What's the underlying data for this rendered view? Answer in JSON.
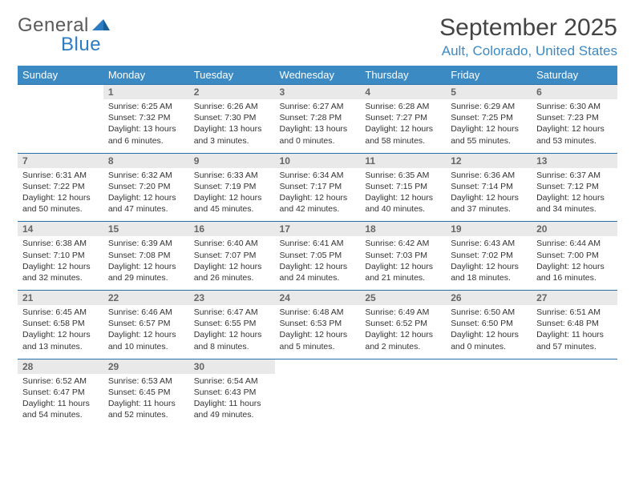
{
  "logo": {
    "text1": "General",
    "text2": "Blue"
  },
  "title": "September 2025",
  "location": "Ault, Colorado, United States",
  "weekdays": [
    "Sunday",
    "Monday",
    "Tuesday",
    "Wednesday",
    "Thursday",
    "Friday",
    "Saturday"
  ],
  "colors": {
    "header_bg": "#3b8ac4",
    "header_text": "#ffffff",
    "daynum_bg": "#e9e9e9",
    "border": "#2a6fa5",
    "location": "#3b8ac4",
    "logo_gray": "#5a5a5a",
    "logo_blue": "#2d7cc1"
  },
  "weeks": [
    [
      null,
      {
        "n": "1",
        "sr": "Sunrise: 6:25 AM",
        "ss": "Sunset: 7:32 PM",
        "dl": "Daylight: 13 hours and 6 minutes."
      },
      {
        "n": "2",
        "sr": "Sunrise: 6:26 AM",
        "ss": "Sunset: 7:30 PM",
        "dl": "Daylight: 13 hours and 3 minutes."
      },
      {
        "n": "3",
        "sr": "Sunrise: 6:27 AM",
        "ss": "Sunset: 7:28 PM",
        "dl": "Daylight: 13 hours and 0 minutes."
      },
      {
        "n": "4",
        "sr": "Sunrise: 6:28 AM",
        "ss": "Sunset: 7:27 PM",
        "dl": "Daylight: 12 hours and 58 minutes."
      },
      {
        "n": "5",
        "sr": "Sunrise: 6:29 AM",
        "ss": "Sunset: 7:25 PM",
        "dl": "Daylight: 12 hours and 55 minutes."
      },
      {
        "n": "6",
        "sr": "Sunrise: 6:30 AM",
        "ss": "Sunset: 7:23 PM",
        "dl": "Daylight: 12 hours and 53 minutes."
      }
    ],
    [
      {
        "n": "7",
        "sr": "Sunrise: 6:31 AM",
        "ss": "Sunset: 7:22 PM",
        "dl": "Daylight: 12 hours and 50 minutes."
      },
      {
        "n": "8",
        "sr": "Sunrise: 6:32 AM",
        "ss": "Sunset: 7:20 PM",
        "dl": "Daylight: 12 hours and 47 minutes."
      },
      {
        "n": "9",
        "sr": "Sunrise: 6:33 AM",
        "ss": "Sunset: 7:19 PM",
        "dl": "Daylight: 12 hours and 45 minutes."
      },
      {
        "n": "10",
        "sr": "Sunrise: 6:34 AM",
        "ss": "Sunset: 7:17 PM",
        "dl": "Daylight: 12 hours and 42 minutes."
      },
      {
        "n": "11",
        "sr": "Sunrise: 6:35 AM",
        "ss": "Sunset: 7:15 PM",
        "dl": "Daylight: 12 hours and 40 minutes."
      },
      {
        "n": "12",
        "sr": "Sunrise: 6:36 AM",
        "ss": "Sunset: 7:14 PM",
        "dl": "Daylight: 12 hours and 37 minutes."
      },
      {
        "n": "13",
        "sr": "Sunrise: 6:37 AM",
        "ss": "Sunset: 7:12 PM",
        "dl": "Daylight: 12 hours and 34 minutes."
      }
    ],
    [
      {
        "n": "14",
        "sr": "Sunrise: 6:38 AM",
        "ss": "Sunset: 7:10 PM",
        "dl": "Daylight: 12 hours and 32 minutes."
      },
      {
        "n": "15",
        "sr": "Sunrise: 6:39 AM",
        "ss": "Sunset: 7:08 PM",
        "dl": "Daylight: 12 hours and 29 minutes."
      },
      {
        "n": "16",
        "sr": "Sunrise: 6:40 AM",
        "ss": "Sunset: 7:07 PM",
        "dl": "Daylight: 12 hours and 26 minutes."
      },
      {
        "n": "17",
        "sr": "Sunrise: 6:41 AM",
        "ss": "Sunset: 7:05 PM",
        "dl": "Daylight: 12 hours and 24 minutes."
      },
      {
        "n": "18",
        "sr": "Sunrise: 6:42 AM",
        "ss": "Sunset: 7:03 PM",
        "dl": "Daylight: 12 hours and 21 minutes."
      },
      {
        "n": "19",
        "sr": "Sunrise: 6:43 AM",
        "ss": "Sunset: 7:02 PM",
        "dl": "Daylight: 12 hours and 18 minutes."
      },
      {
        "n": "20",
        "sr": "Sunrise: 6:44 AM",
        "ss": "Sunset: 7:00 PM",
        "dl": "Daylight: 12 hours and 16 minutes."
      }
    ],
    [
      {
        "n": "21",
        "sr": "Sunrise: 6:45 AM",
        "ss": "Sunset: 6:58 PM",
        "dl": "Daylight: 12 hours and 13 minutes."
      },
      {
        "n": "22",
        "sr": "Sunrise: 6:46 AM",
        "ss": "Sunset: 6:57 PM",
        "dl": "Daylight: 12 hours and 10 minutes."
      },
      {
        "n": "23",
        "sr": "Sunrise: 6:47 AM",
        "ss": "Sunset: 6:55 PM",
        "dl": "Daylight: 12 hours and 8 minutes."
      },
      {
        "n": "24",
        "sr": "Sunrise: 6:48 AM",
        "ss": "Sunset: 6:53 PM",
        "dl": "Daylight: 12 hours and 5 minutes."
      },
      {
        "n": "25",
        "sr": "Sunrise: 6:49 AM",
        "ss": "Sunset: 6:52 PM",
        "dl": "Daylight: 12 hours and 2 minutes."
      },
      {
        "n": "26",
        "sr": "Sunrise: 6:50 AM",
        "ss": "Sunset: 6:50 PM",
        "dl": "Daylight: 12 hours and 0 minutes."
      },
      {
        "n": "27",
        "sr": "Sunrise: 6:51 AM",
        "ss": "Sunset: 6:48 PM",
        "dl": "Daylight: 11 hours and 57 minutes."
      }
    ],
    [
      {
        "n": "28",
        "sr": "Sunrise: 6:52 AM",
        "ss": "Sunset: 6:47 PM",
        "dl": "Daylight: 11 hours and 54 minutes."
      },
      {
        "n": "29",
        "sr": "Sunrise: 6:53 AM",
        "ss": "Sunset: 6:45 PM",
        "dl": "Daylight: 11 hours and 52 minutes."
      },
      {
        "n": "30",
        "sr": "Sunrise: 6:54 AM",
        "ss": "Sunset: 6:43 PM",
        "dl": "Daylight: 11 hours and 49 minutes."
      },
      null,
      null,
      null,
      null
    ]
  ]
}
